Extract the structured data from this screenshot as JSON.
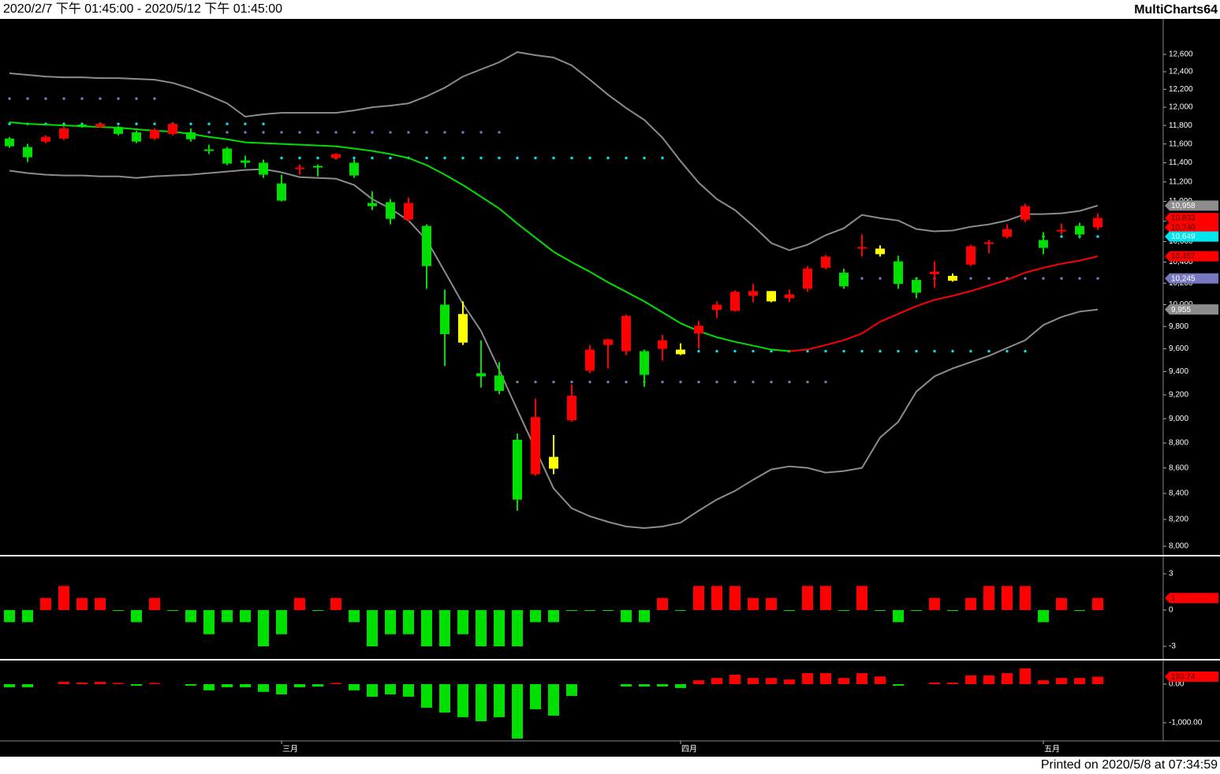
{
  "header": {
    "range": "2020/2/7 下午 01:45:00 - 2020/5/12 下午 01:45:00",
    "app": "MultiCharts64"
  },
  "footer": {
    "printed": "Printed on 2020/5/8 at 07:34:59"
  },
  "chart_data": [
    {
      "type": "candlestick",
      "log_scale": true,
      "ylim": [
        7936,
        13020
      ],
      "yticks": [
        {
          "value": 8000,
          "label": "8,000"
        },
        {
          "value": 8200,
          "label": "8,200"
        },
        {
          "value": 8400,
          "label": "8,400"
        },
        {
          "value": 8600,
          "label": "8,600"
        },
        {
          "value": 8800,
          "label": "8,800"
        },
        {
          "value": 9000,
          "label": "9,000"
        },
        {
          "value": 9200,
          "label": "9,200"
        },
        {
          "value": 9400,
          "label": "9,400"
        },
        {
          "value": 9600,
          "label": "9,600"
        },
        {
          "value": 9800,
          "label": "9,800"
        },
        {
          "value": 10000,
          "label": "10,000"
        },
        {
          "value": 10200,
          "label": "10,200"
        },
        {
          "value": 10400,
          "label": "10,400"
        },
        {
          "value": 10600,
          "label": "10,600"
        },
        {
          "value": 10800,
          "label": "10,800"
        },
        {
          "value": 11000,
          "label": "11,000"
        },
        {
          "value": 11200,
          "label": "11,200"
        },
        {
          "value": 11400,
          "label": "11,400"
        },
        {
          "value": 11600,
          "label": "11,600"
        },
        {
          "value": 11800,
          "label": "11,800"
        },
        {
          "value": 12000,
          "label": "12,000"
        },
        {
          "value": 12200,
          "label": "12,200"
        },
        {
          "value": 12400,
          "label": "12,400"
        },
        {
          "value": 12600,
          "label": "12,600"
        }
      ],
      "categories": [
        null,
        null,
        null,
        null,
        null,
        null,
        null,
        null,
        null,
        null,
        null,
        null,
        null,
        null,
        null,
        "三月",
        null,
        null,
        null,
        null,
        null,
        null,
        null,
        null,
        null,
        null,
        null,
        null,
        null,
        null,
        null,
        null,
        null,
        null,
        null,
        null,
        null,
        "四月",
        null,
        null,
        null,
        null,
        null,
        null,
        null,
        null,
        null,
        null,
        null,
        null,
        null,
        null,
        null,
        null,
        null,
        null,
        null,
        "五月",
        null,
        null,
        null
      ],
      "open": [
        11658,
        11567,
        11625,
        11658,
        11809,
        11783,
        11783,
        11725,
        11658,
        11708,
        11725,
        11542,
        11550,
        11425,
        11400,
        11184,
        11333,
        11367,
        11450,
        11400,
        10984,
        10992,
        10816,
        10754,
        10000,
        9914,
        9386,
        9366,
        8826,
        8550,
        8688,
        8987,
        9407,
        9634,
        9579,
        9579,
        9600,
        9593,
        9738,
        9950,
        9943,
        10081,
        10126,
        10059,
        10148,
        10346,
        10300,
        10531,
        10531,
        10408,
        10231,
        10285,
        10269,
        10377,
        10577,
        10646,
        10816,
        10615,
        10700,
        10754,
        10740
      ],
      "high": [
        11675,
        11600,
        11692,
        11792,
        11817,
        11826,
        11792,
        11742,
        11767,
        11835,
        11767,
        11592,
        11567,
        11475,
        11433,
        11275,
        11383,
        11383,
        11500,
        11433,
        11104,
        11024,
        11040,
        10769,
        10141,
        10030,
        9676,
        9483,
        8877,
        9167,
        8865,
        9290,
        9634,
        9690,
        9909,
        9593,
        9724,
        9648,
        9850,
        10030,
        10133,
        10193,
        10126,
        10141,
        10362,
        10469,
        10338,
        10669,
        10562,
        10462,
        10254,
        10408,
        10292,
        10569,
        10615,
        10769,
        10976,
        10692,
        10777,
        10785,
        10880
      ],
      "low": [
        11558,
        11408,
        11608,
        11642,
        11775,
        11775,
        11692,
        11608,
        11642,
        11692,
        11625,
        11492,
        11375,
        11350,
        11242,
        11000,
        11275,
        11258,
        11433,
        11242,
        10912,
        10769,
        10800,
        10148,
        9448,
        9634,
        9262,
        9207,
        8267,
        8538,
        8550,
        8974,
        9386,
        9428,
        9545,
        9269,
        9497,
        9545,
        9600,
        9879,
        9936,
        10022,
        10022,
        10022,
        10119,
        10331,
        10148,
        10454,
        10454,
        10148,
        10059,
        10156,
        10215,
        10362,
        10485,
        10631,
        10792,
        10477,
        10669,
        10631,
        10715
      ],
      "close": [
        11575,
        11458,
        11675,
        11767,
        11783,
        11817,
        11708,
        11625,
        11750,
        11817,
        11650,
        11525,
        11392,
        11400,
        11275,
        11008,
        11350,
        11350,
        11492,
        11267,
        10952,
        10824,
        10984,
        10362,
        9731,
        9655,
        9359,
        9234,
        8352,
        9013,
        8594,
        9193,
        9593,
        9683,
        9895,
        9372,
        9676,
        9552,
        9807,
        10000,
        10119,
        10126,
        10030,
        10096,
        10338,
        10454,
        10170,
        10546,
        10477,
        10193,
        10111,
        10308,
        10223,
        10554,
        10592,
        10723,
        10952,
        10538,
        10715,
        10669,
        10833
      ],
      "colors": [
        "#00e000",
        "#00e000",
        "#ff0000",
        "#ff0000",
        "#00e000",
        "#ff0000",
        "#00e000",
        "#00e000",
        "#ff0000",
        "#ff0000",
        "#00e000",
        "#00e000",
        "#00e000",
        "#00e000",
        "#00e000",
        "#00e000",
        "#ff0000",
        "#00e000",
        "#ff0000",
        "#00e000",
        "#00e000",
        "#00e000",
        "#ff0000",
        "#00e000",
        "#00e000",
        "#ffff00",
        "#00e000",
        "#00e000",
        "#00e000",
        "#ff0000",
        "#ffff00",
        "#ff0000",
        "#ff0000",
        "#ff0000",
        "#ff0000",
        "#00e000",
        "#ff0000",
        "#ffff00",
        "#ff0000",
        "#ff0000",
        "#ff0000",
        "#ff0000",
        "#ffff00",
        "#ff0000",
        "#ff0000",
        "#ff0000",
        "#00e000",
        "#ff0000",
        "#ffff00",
        "#00e000",
        "#00e000",
        "#ff0000",
        "#ffff00",
        "#ff0000",
        "#ff0000",
        "#ff0000",
        "#ff0000",
        "#00e000",
        "#ff0000",
        "#00e000",
        "#ff0000"
      ],
      "close_label": "10,833",
      "open_label": "10,740",
      "tag_color": "#ff0000",
      "lines": [
        {
          "color": "#8c8c8c",
          "last_label": "10,958",
          "values": [
            12382,
            12364,
            12345,
            12336,
            12336,
            12327,
            12327,
            12318,
            12309,
            12273,
            12209,
            12130,
            12043,
            11896,
            11922,
            11939,
            11939,
            11939,
            11939,
            11965,
            12000,
            12018,
            12043,
            12122,
            12218,
            12345,
            12427,
            12509,
            12627,
            12591,
            12564,
            12473,
            12309,
            12139,
            11991,
            11861,
            11667,
            11417,
            11192,
            11024,
            10912,
            10754,
            10585,
            10515,
            10569,
            10662,
            10731,
            10864,
            10832,
            10808,
            10723,
            10700,
            10708,
            10746,
            10769,
            10808,
            10872,
            10872,
            10880,
            10904,
            10958
          ]
        },
        {
          "color": "#8c8c8c",
          "last_label": "9,955",
          "values": [
            11317,
            11292,
            11275,
            11267,
            11267,
            11258,
            11258,
            11242,
            11258,
            11267,
            11275,
            11292,
            11308,
            11325,
            11333,
            11300,
            11250,
            11242,
            11233,
            11168,
            11024,
            10928,
            10808,
            10615,
            10308,
            10007,
            9759,
            9414,
            9073,
            8750,
            8438,
            8285,
            8224,
            8182,
            8147,
            8135,
            8147,
            8176,
            8267,
            8352,
            8419,
            8506,
            8588,
            8612,
            8600,
            8563,
            8575,
            8600,
            8845,
            8974,
            9228,
            9359,
            9428,
            9483,
            9538,
            9607,
            9676,
            9814,
            9886,
            9936,
            9955
          ]
        }
      ],
      "average": {
        "up_color": "#ff0000",
        "down_color": "#00e000",
        "last_label": "10,457",
        "values": [
          11835,
          11817,
          11809,
          11800,
          11792,
          11783,
          11775,
          11758,
          11742,
          11733,
          11708,
          11675,
          11650,
          11617,
          11608,
          11600,
          11592,
          11583,
          11575,
          11550,
          11525,
          11492,
          11450,
          11375,
          11275,
          11168,
          11048,
          10928,
          10777,
          10638,
          10500,
          10400,
          10308,
          10208,
          10119,
          10030,
          9929,
          9829,
          9759,
          9703,
          9662,
          9628,
          9593,
          9579,
          9593,
          9634,
          9676,
          9738,
          9843,
          9914,
          9986,
          10044,
          10081,
          10126,
          10178,
          10231,
          10300,
          10346,
          10385,
          10415,
          10457
        ]
      },
      "dots": [
        {
          "color": "#00e5ee",
          "last_label": "10,649",
          "values": [
            11817,
            11817,
            11817,
            11817,
            11817,
            11817,
            11817,
            11817,
            11817,
            11817,
            11817,
            11817,
            11817,
            11817,
            11817,
            11450,
            11450,
            11450,
            11450,
            11450,
            11450,
            11450,
            11450,
            11450,
            11450,
            11450,
            11450,
            11450,
            11450,
            11450,
            11450,
            11450,
            11450,
            11450,
            11450,
            11450,
            11450,
            9579,
            9579,
            9579,
            9579,
            9579,
            9579,
            9579,
            9579,
            9579,
            9579,
            9579,
            9579,
            9579,
            9579,
            9579,
            9579,
            9579,
            9579,
            9579,
            9579,
            10649,
            10649,
            10649,
            10649
          ]
        },
        {
          "color": "#7878c0",
          "last_label": "10,245",
          "values": [
            12096,
            12096,
            12096,
            12096,
            12096,
            12096,
            12096,
            12096,
            12096,
            null,
            11725,
            11725,
            11725,
            11725,
            11725,
            11725,
            11725,
            11725,
            11725,
            11725,
            11725,
            11725,
            11725,
            11725,
            11725,
            11725,
            11725,
            11725,
            9310,
            9310,
            9310,
            9310,
            9310,
            9310,
            9310,
            9310,
            9310,
            9310,
            9310,
            9310,
            9310,
            9310,
            9310,
            9310,
            9310,
            9310,
            10245,
            10245,
            10245,
            10245,
            10245,
            10245,
            10245,
            10245,
            10245,
            10245,
            10245,
            10245,
            10245,
            10245,
            10245
          ]
        }
      ]
    },
    {
      "type": "bar",
      "ylim": [
        -4.04,
        4.37
      ],
      "yticks": [
        3,
        0,
        -3
      ],
      "up_color": "#ff0000",
      "down_color": "#00e000",
      "values": [
        -1,
        -1,
        1,
        2,
        1,
        1,
        0,
        -1,
        1,
        0,
        -1,
        -2,
        -1,
        -1,
        -3,
        -2,
        1,
        0,
        1,
        -1,
        -3,
        -2,
        -2,
        -3,
        -3,
        -2,
        -3,
        -3,
        -3,
        -1,
        -1,
        0,
        0,
        0,
        -1,
        -1,
        1,
        0,
        2,
        2,
        2,
        1,
        1,
        0,
        2,
        2,
        0,
        2,
        0,
        -1,
        0,
        1,
        0,
        1,
        2,
        2,
        2,
        -1,
        1,
        0,
        1
      ]
    },
    {
      "type": "bar",
      "ylim": [
        -1469,
        592
      ],
      "yticks": [
        {
          "value": 0,
          "label": "0.00"
        },
        {
          "value": -1000,
          "label": "-1,000.00"
        }
      ],
      "up_color": "#ff0000",
      "down_color": "#00e000",
      "values": [
        -80,
        -80,
        null,
        60,
        40,
        60,
        30,
        -40,
        30,
        null,
        -40,
        -160,
        -80,
        -80,
        -200,
        -265,
        -80,
        -60,
        30,
        -160,
        -325,
        -265,
        -325,
        -610,
        -735,
        -855,
        -960,
        -855,
        -1410,
        -650,
        -815,
        -305,
        null,
        null,
        -60,
        -60,
        -60,
        -100,
        100,
        160,
        245,
        160,
        160,
        120,
        285,
        285,
        160,
        285,
        200,
        -40,
        null,
        40,
        40,
        225,
        225,
        285,
        410,
        100,
        160,
        160,
        193.74
      ]
    }
  ]
}
